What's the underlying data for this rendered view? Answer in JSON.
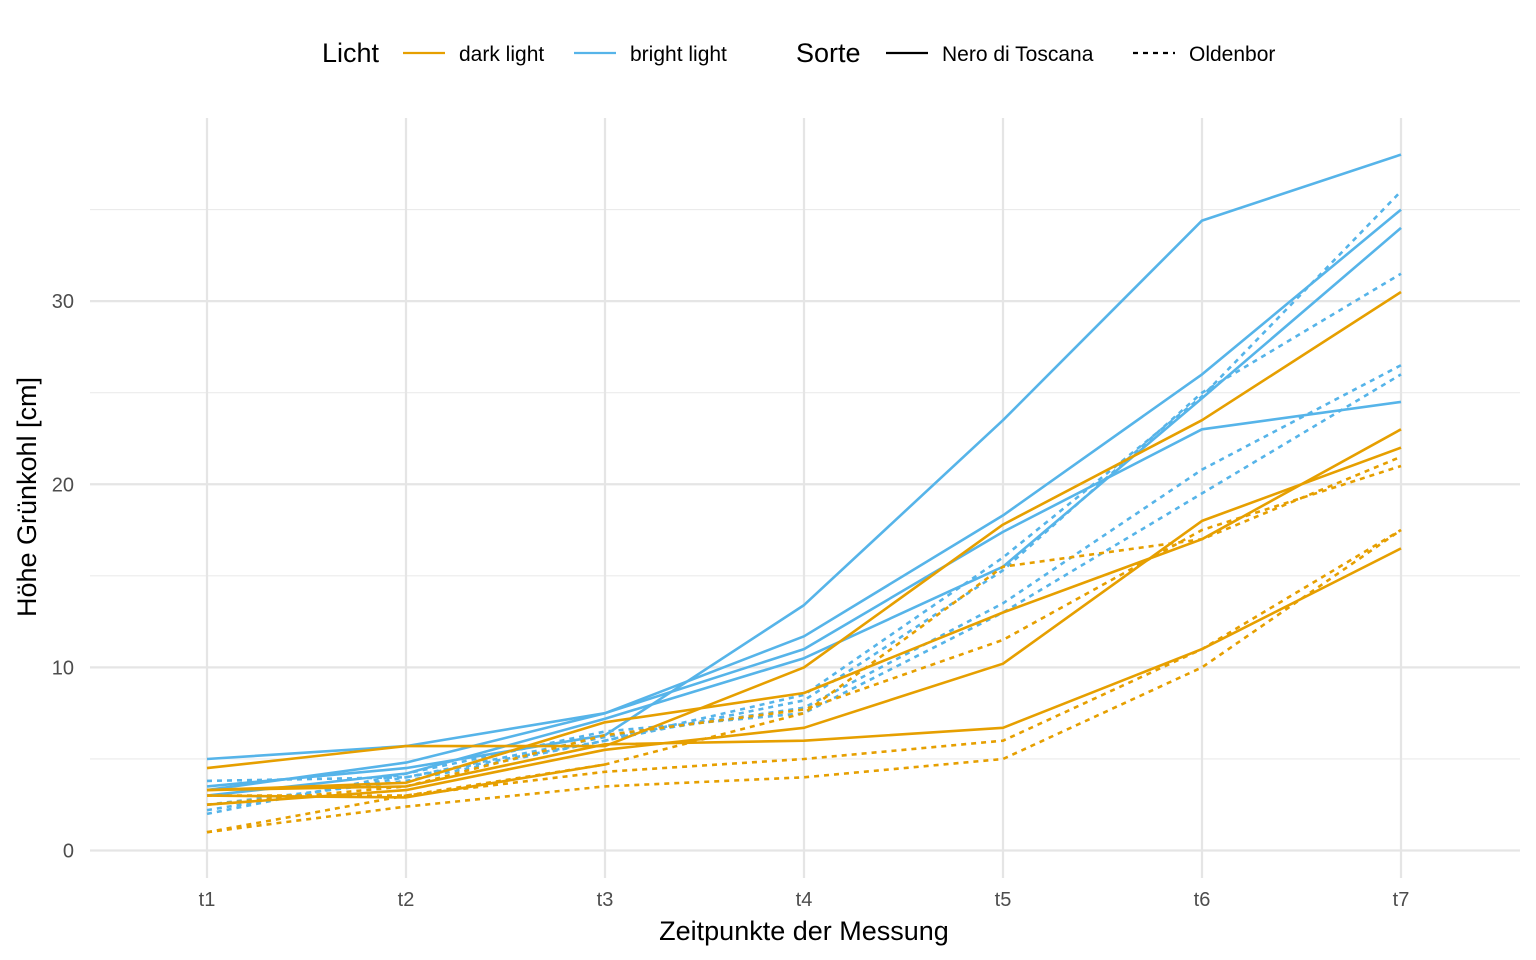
{
  "chart_data": {
    "type": "line",
    "xlabel": "Zeitpunkte der Messung",
    "ylabel": "Höhe Grünkohl [cm]",
    "categories": [
      "t1",
      "t2",
      "t3",
      "t4",
      "t5",
      "t6",
      "t7"
    ],
    "ylim": [
      -1.5,
      40.0
    ],
    "yticks": [
      0,
      10,
      20,
      30
    ],
    "grid": true,
    "legend_position": "top",
    "legend": {
      "color_title": "Licht",
      "color_items": [
        {
          "label": "dark light",
          "color": "#E69F00"
        },
        {
          "label": "bright light",
          "color": "#56B4E9"
        }
      ],
      "linetype_title": "Sorte",
      "linetype_items": [
        {
          "label": "Nero di Toscana",
          "linetype": "solid"
        },
        {
          "label": "Oldenbor",
          "linetype": "dashed"
        }
      ]
    },
    "colors": {
      "dark light": "#E69F00",
      "bright light": "#56B4E9"
    },
    "series": [
      {
        "licht": "bright light",
        "sorte": "Nero di Toscana",
        "values": [
          3.5,
          4.5,
          6.3,
          13.4,
          23.5,
          34.4,
          38.0
        ]
      },
      {
        "licht": "bright light",
        "sorte": "Nero di Toscana",
        "values": [
          5.0,
          5.7,
          7.5,
          11.7,
          18.3,
          26.0,
          35.0
        ]
      },
      {
        "licht": "bright light",
        "sorte": "Nero di Toscana",
        "values": [
          3.3,
          4.8,
          7.5,
          11.0,
          17.4,
          23.0,
          24.5
        ]
      },
      {
        "licht": "bright light",
        "sorte": "Nero di Toscana",
        "values": [
          3.0,
          4.2,
          7.2,
          10.5,
          15.5,
          24.7,
          34.0
        ]
      },
      {
        "licht": "bright light",
        "sorte": "Oldenbor",
        "values": [
          3.8,
          4.0,
          6.0,
          8.5,
          16.0,
          24.8,
          36.0
        ]
      },
      {
        "licht": "bright light",
        "sorte": "Oldenbor",
        "values": [
          2.5,
          3.8,
          6.0,
          8.2,
          15.3,
          25.0,
          31.5
        ]
      },
      {
        "licht": "bright light",
        "sorte": "Oldenbor",
        "values": [
          2.2,
          4.0,
          6.2,
          7.8,
          13.5,
          20.8,
          26.5
        ]
      },
      {
        "licht": "bright light",
        "sorte": "Oldenbor",
        "values": [
          2.0,
          4.2,
          6.5,
          7.5,
          13.0,
          19.5,
          26.0
        ]
      },
      {
        "licht": "dark light",
        "sorte": "Nero di Toscana",
        "values": [
          4.5,
          5.7,
          5.7,
          10.0,
          17.8,
          23.5,
          30.5
        ]
      },
      {
        "licht": "dark light",
        "sorte": "Nero di Toscana",
        "values": [
          3.3,
          3.7,
          7.0,
          8.6,
          13.0,
          17.0,
          23.0
        ]
      },
      {
        "licht": "dark light",
        "sorte": "Nero di Toscana",
        "values": [
          2.5,
          3.3,
          5.5,
          6.7,
          10.2,
          18.0,
          22.0
        ]
      },
      {
        "licht": "dark light",
        "sorte": "Nero di Toscana",
        "values": [
          3.3,
          3.5,
          5.8,
          6.0,
          6.7,
          11.0,
          16.5
        ]
      },
      {
        "licht": "dark light",
        "sorte": "Nero di Toscana",
        "values": [
          3.0,
          2.9,
          4.7,
          null,
          null,
          null,
          null
        ]
      },
      {
        "licht": "dark light",
        "sorte": "Oldenbor",
        "values": [
          3.0,
          3.0,
          4.7,
          7.5,
          15.5,
          17.0,
          21.5
        ]
      },
      {
        "licht": "dark light",
        "sorte": "Oldenbor",
        "values": [
          2.5,
          3.5,
          6.3,
          7.7,
          11.5,
          17.5,
          21.0
        ]
      },
      {
        "licht": "dark light",
        "sorte": "Oldenbor",
        "values": [
          1.0,
          3.0,
          4.3,
          5.0,
          6.0,
          11.0,
          17.5
        ]
      },
      {
        "licht": "dark light",
        "sorte": "Oldenbor",
        "values": [
          1.0,
          2.4,
          3.5,
          4.0,
          5.0,
          10.0,
          17.5
        ]
      }
    ]
  }
}
